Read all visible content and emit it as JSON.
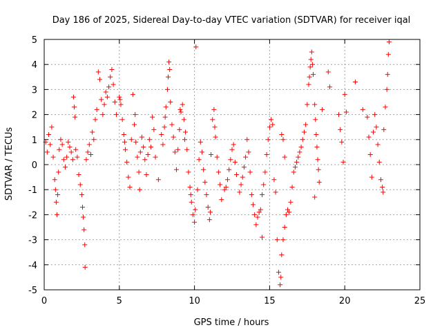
{
  "chart_data": {
    "type": "scatter",
    "title": "Day 186 of 2025, Sidereal Day-to-day VTEC variation (SDTVAR) for receiver iqal",
    "xlabel": "GPS time / hours",
    "ylabel": "SDTVAR / TECUs",
    "xlim": [
      0,
      25
    ],
    "ylim": [
      -5,
      5
    ],
    "xticks": [
      "0",
      "5",
      "10",
      "15",
      "20",
      "25"
    ],
    "yticks": [
      "5",
      "4",
      "3",
      "2",
      "1",
      "0",
      "-1",
      "-2",
      "-3",
      "-4",
      "-5"
    ],
    "grid": true,
    "marker": "+",
    "color": "#ff0000",
    "series": [
      {
        "name": "SDTVAR",
        "points": [
          [
            0.1,
            0.9
          ],
          [
            0.2,
            0.5
          ],
          [
            0.3,
            1.2
          ],
          [
            0.4,
            0.8
          ],
          [
            0.5,
            1.5
          ],
          [
            0.6,
            0.3
          ],
          [
            0.7,
            -0.6
          ],
          [
            0.75,
            -1.0
          ],
          [
            0.8,
            -1.5
          ],
          [
            0.85,
            -2.0
          ],
          [
            0.9,
            -1.2
          ],
          [
            0.95,
            -0.3
          ],
          [
            1.0,
            0.6
          ],
          [
            1.1,
            1.0
          ],
          [
            1.2,
            0.8
          ],
          [
            1.3,
            0.2
          ],
          [
            1.4,
            -0.1
          ],
          [
            1.5,
            0.3
          ],
          [
            1.6,
            0.9
          ],
          [
            1.7,
            0.7
          ],
          [
            1.8,
            0.5
          ],
          [
            1.9,
            0.2
          ],
          [
            1.95,
            2.7
          ],
          [
            2.0,
            2.3
          ],
          [
            2.05,
            1.9
          ],
          [
            2.1,
            0.6
          ],
          [
            2.2,
            0.3
          ],
          [
            2.3,
            -0.4
          ],
          [
            2.4,
            -0.8
          ],
          [
            2.5,
            -1.2
          ],
          [
            2.55,
            -1.7
          ],
          [
            2.6,
            -2.1
          ],
          [
            2.65,
            -2.6
          ],
          [
            2.7,
            -3.2
          ],
          [
            2.72,
            -4.1
          ],
          [
            2.8,
            0.2
          ],
          [
            2.9,
            0.5
          ],
          [
            3.0,
            0.8
          ],
          [
            3.2,
            1.3
          ],
          [
            3.4,
            1.8
          ],
          [
            3.5,
            2.2
          ],
          [
            3.6,
            3.7
          ],
          [
            3.7,
            3.4
          ],
          [
            3.8,
            2.6
          ],
          [
            3.9,
            2.0
          ],
          [
            4.0,
            2.4
          ],
          [
            4.2,
            2.7
          ],
          [
            4.4,
            3.5
          ],
          [
            4.5,
            3.8
          ],
          [
            4.6,
            3.2
          ],
          [
            4.7,
            2.5
          ],
          [
            4.8,
            2.0
          ],
          [
            5.0,
            2.7
          ],
          [
            5.1,
            2.4
          ],
          [
            5.2,
            1.8
          ],
          [
            5.3,
            1.2
          ],
          [
            5.4,
            0.6
          ],
          [
            5.5,
            0.1
          ],
          [
            5.6,
            -0.5
          ],
          [
            5.7,
            -0.9
          ],
          [
            5.8,
            1.0
          ],
          [
            5.9,
            2.8
          ],
          [
            6.0,
            1.6
          ],
          [
            6.1,
            0.9
          ],
          [
            6.2,
            0.3
          ],
          [
            6.3,
            -0.3
          ],
          [
            6.4,
            0.5
          ],
          [
            6.5,
            1.1
          ],
          [
            6.6,
            0.7
          ],
          [
            6.7,
            0.2
          ],
          [
            6.8,
            -0.4
          ],
          [
            6.9,
            0.4
          ],
          [
            7.0,
            1.0
          ],
          [
            7.2,
            1.9
          ],
          [
            7.4,
            0.3
          ],
          [
            7.6,
            -0.6
          ],
          [
            7.8,
            1.2
          ],
          [
            7.9,
            0.8
          ],
          [
            8.0,
            1.5
          ],
          [
            8.1,
            2.3
          ],
          [
            8.2,
            3.0
          ],
          [
            8.25,
            3.5
          ],
          [
            8.3,
            4.1
          ],
          [
            8.4,
            2.5
          ],
          [
            8.5,
            1.6
          ],
          [
            8.6,
            1.1
          ],
          [
            8.7,
            0.5
          ],
          [
            8.8,
            -0.2
          ],
          [
            8.9,
            0.6
          ],
          [
            9.0,
            1.4
          ],
          [
            9.1,
            2.1
          ],
          [
            9.2,
            2.4
          ],
          [
            9.3,
            1.8
          ],
          [
            9.4,
            1.3
          ],
          [
            9.5,
            0.6
          ],
          [
            9.6,
            -0.3
          ],
          [
            9.7,
            -0.9
          ],
          [
            9.8,
            -1.5
          ],
          [
            9.9,
            -2.0
          ],
          [
            10.0,
            -2.3
          ],
          [
            10.1,
            4.7
          ],
          [
            10.2,
            -1.0
          ],
          [
            10.3,
            0.2
          ],
          [
            10.4,
            0.9
          ],
          [
            10.5,
            0.5
          ],
          [
            10.6,
            -0.2
          ],
          [
            10.7,
            -0.7
          ],
          [
            10.8,
            -1.2
          ],
          [
            10.9,
            -1.7
          ],
          [
            11.0,
            -2.2
          ],
          [
            11.1,
            0.4
          ],
          [
            11.2,
            1.8
          ],
          [
            11.3,
            2.2
          ],
          [
            11.4,
            1.1
          ],
          [
            11.5,
            0.3
          ],
          [
            11.6,
            -0.3
          ],
          [
            11.7,
            -0.8
          ],
          [
            11.8,
            -1.4
          ],
          [
            12.0,
            -1.0
          ],
          [
            12.2,
            -0.6
          ],
          [
            12.4,
            0.2
          ],
          [
            12.6,
            0.8
          ],
          [
            12.8,
            -0.4
          ],
          [
            13.0,
            -1.1
          ],
          [
            13.2,
            -0.5
          ],
          [
            13.4,
            0.3
          ],
          [
            13.5,
            1.0
          ],
          [
            13.6,
            0.5
          ],
          [
            13.8,
            -1.2
          ],
          [
            14.0,
            -2.0
          ],
          [
            14.1,
            -2.4
          ],
          [
            14.2,
            -2.1
          ],
          [
            14.4,
            -1.8
          ],
          [
            14.5,
            -1.2
          ],
          [
            14.6,
            -0.8
          ],
          [
            14.7,
            -0.3
          ],
          [
            14.8,
            0.4
          ],
          [
            14.9,
            1.0
          ],
          [
            15.0,
            1.5
          ],
          [
            15.1,
            1.8
          ],
          [
            14.5,
            -2.9
          ],
          [
            15.3,
            -0.6
          ],
          [
            15.4,
            -1.1
          ],
          [
            15.5,
            -3.0
          ],
          [
            15.6,
            -4.3
          ],
          [
            15.7,
            -4.8
          ],
          [
            15.75,
            -4.5
          ],
          [
            15.8,
            -3.6
          ],
          [
            15.9,
            -3.0
          ],
          [
            16.0,
            -2.5
          ],
          [
            15.8,
            1.2
          ],
          [
            15.9,
            1.0
          ],
          [
            16.0,
            0.3
          ],
          [
            16.2,
            -1.8
          ],
          [
            16.4,
            -1.5
          ],
          [
            16.5,
            -0.9
          ],
          [
            16.6,
            -0.3
          ],
          [
            16.8,
            0.1
          ],
          [
            17.0,
            0.5
          ],
          [
            17.2,
            1.0
          ],
          [
            17.4,
            1.6
          ],
          [
            17.5,
            2.4
          ],
          [
            17.6,
            3.2
          ],
          [
            17.7,
            3.9
          ],
          [
            17.8,
            4.5
          ],
          [
            17.9,
            3.6
          ],
          [
            18.0,
            2.4
          ],
          [
            18.1,
            1.2
          ],
          [
            18.2,
            0.2
          ],
          [
            18.3,
            -0.7
          ],
          [
            18.0,
            -1.3
          ],
          [
            18.5,
            2.2
          ],
          [
            18.9,
            3.7
          ],
          [
            19.0,
            3.1
          ],
          [
            19.6,
            2.0
          ],
          [
            19.7,
            1.4
          ],
          [
            19.8,
            0.9
          ],
          [
            19.9,
            0.1
          ],
          [
            20.0,
            2.8
          ],
          [
            20.1,
            2.1
          ],
          [
            20.7,
            3.3
          ],
          [
            21.2,
            2.2
          ],
          [
            21.5,
            1.9
          ],
          [
            21.6,
            1.1
          ],
          [
            21.7,
            0.4
          ],
          [
            21.8,
            -0.5
          ],
          [
            21.9,
            1.3
          ],
          [
            22.0,
            2.0
          ],
          [
            22.1,
            1.5
          ],
          [
            22.2,
            0.8
          ],
          [
            22.3,
            0.1
          ],
          [
            22.4,
            -0.6
          ],
          [
            22.5,
            -0.9
          ],
          [
            22.6,
            1.4
          ],
          [
            22.7,
            2.3
          ],
          [
            22.8,
            3.0
          ],
          [
            22.85,
            3.6
          ],
          [
            22.9,
            4.4
          ],
          [
            22.95,
            4.9
          ],
          [
            22.55,
            -1.1
          ],
          [
            3.1,
            0.4
          ],
          [
            3.3,
            1.0
          ],
          [
            4.1,
            2.9
          ],
          [
            4.3,
            3.1
          ],
          [
            5.05,
            2.6
          ],
          [
            5.35,
            0.9
          ],
          [
            6.05,
            2.0
          ],
          [
            6.35,
            -1.0
          ],
          [
            7.1,
            0.7
          ],
          [
            7.3,
            1.4
          ],
          [
            8.05,
            1.9
          ],
          [
            8.35,
            3.8
          ],
          [
            9.05,
            2.2
          ],
          [
            9.35,
            1.0
          ],
          [
            9.75,
            -1.2
          ],
          [
            10.05,
            -1.8
          ],
          [
            11.05,
            -1.9
          ],
          [
            11.35,
            1.5
          ],
          [
            12.1,
            -0.9
          ],
          [
            12.3,
            -0.2
          ],
          [
            12.5,
            0.6
          ],
          [
            12.7,
            0.1
          ],
          [
            13.1,
            -0.8
          ],
          [
            13.3,
            -0.1
          ],
          [
            13.7,
            -0.3
          ],
          [
            13.9,
            -1.6
          ],
          [
            14.3,
            -1.9
          ],
          [
            15.2,
            1.6
          ],
          [
            16.1,
            -2.0
          ],
          [
            16.3,
            -1.9
          ],
          [
            16.7,
            -0.1
          ],
          [
            16.9,
            0.3
          ],
          [
            17.1,
            0.7
          ],
          [
            17.3,
            1.3
          ],
          [
            17.65,
            3.5
          ],
          [
            17.75,
            4.2
          ],
          [
            17.85,
            4.0
          ],
          [
            18.05,
            1.8
          ],
          [
            18.15,
            0.7
          ],
          [
            18.25,
            -0.2
          ]
        ]
      }
    ]
  }
}
